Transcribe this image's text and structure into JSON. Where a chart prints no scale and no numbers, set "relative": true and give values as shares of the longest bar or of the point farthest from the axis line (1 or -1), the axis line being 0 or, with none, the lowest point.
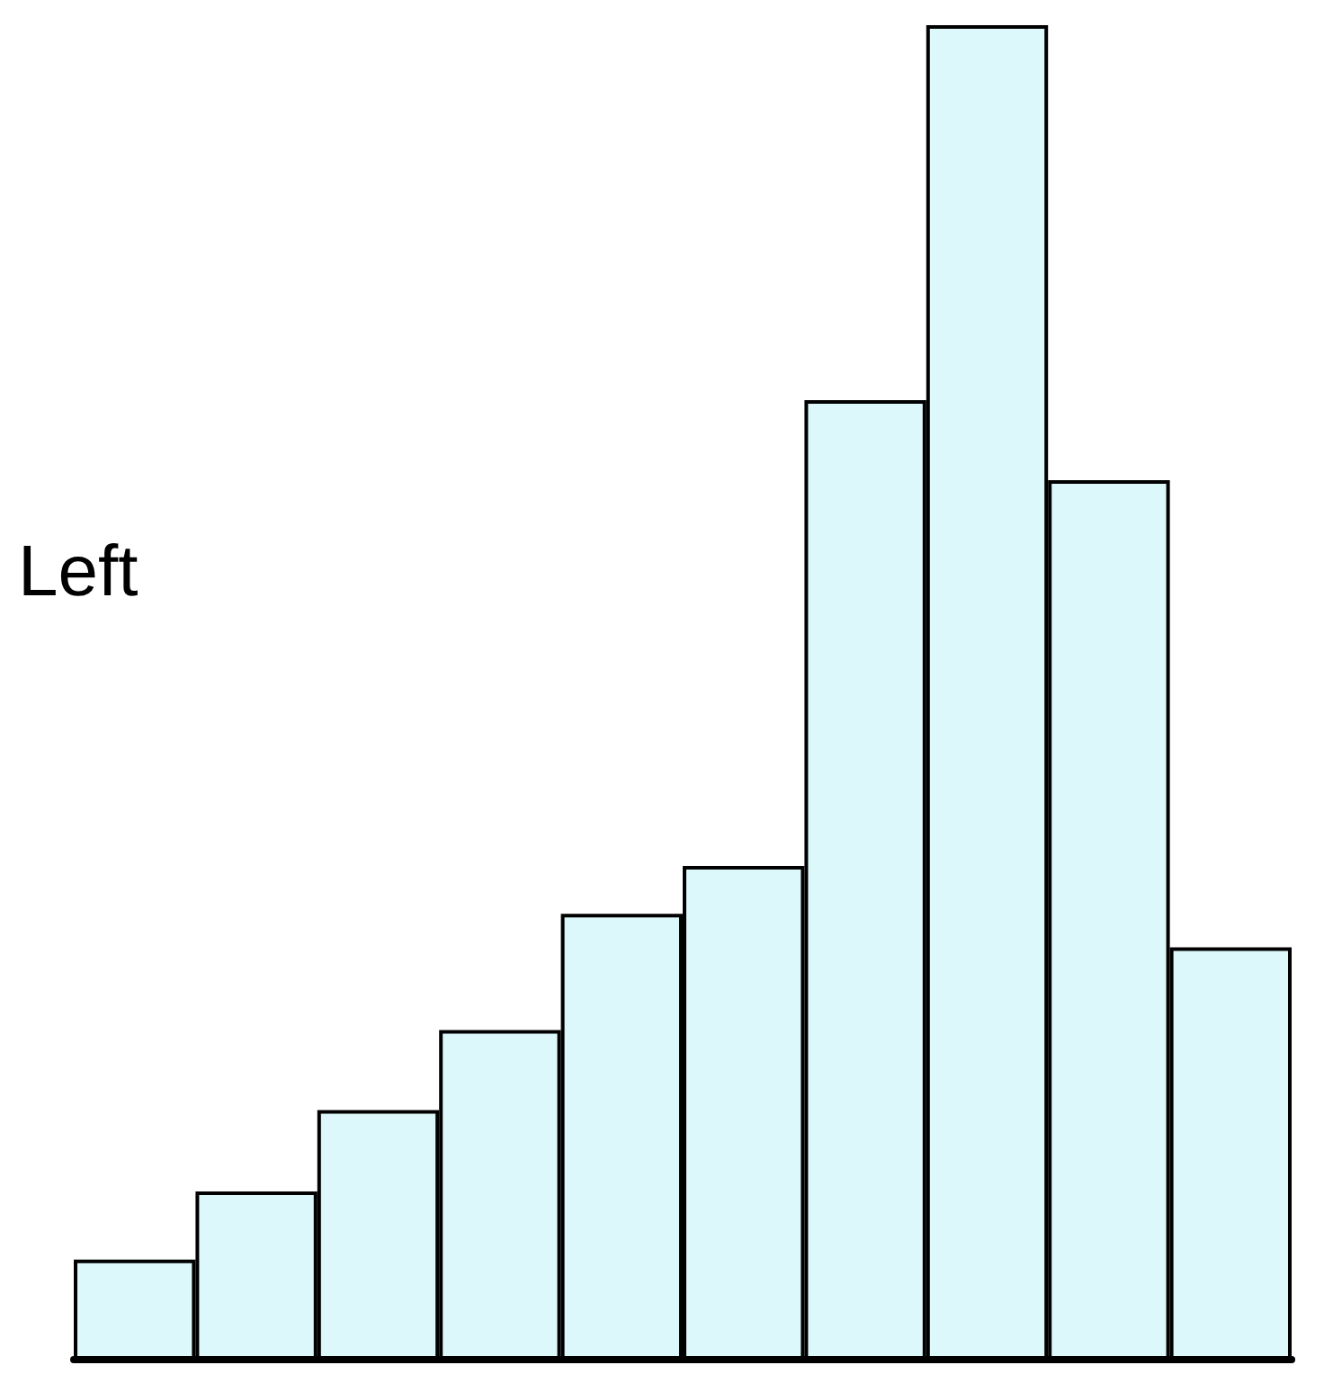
{
  "chart_data": {
    "type": "bar",
    "relative": true,
    "categories": [
      null,
      null,
      null,
      null,
      null,
      null,
      null,
      null,
      null,
      null
    ],
    "values": [
      0.075,
      0.126,
      0.187,
      0.247,
      0.334,
      0.37,
      0.719,
      1,
      0.659,
      0.309
    ],
    "color": "#dcf8fa",
    "annotations": [
      "Left"
    ]
  }
}
